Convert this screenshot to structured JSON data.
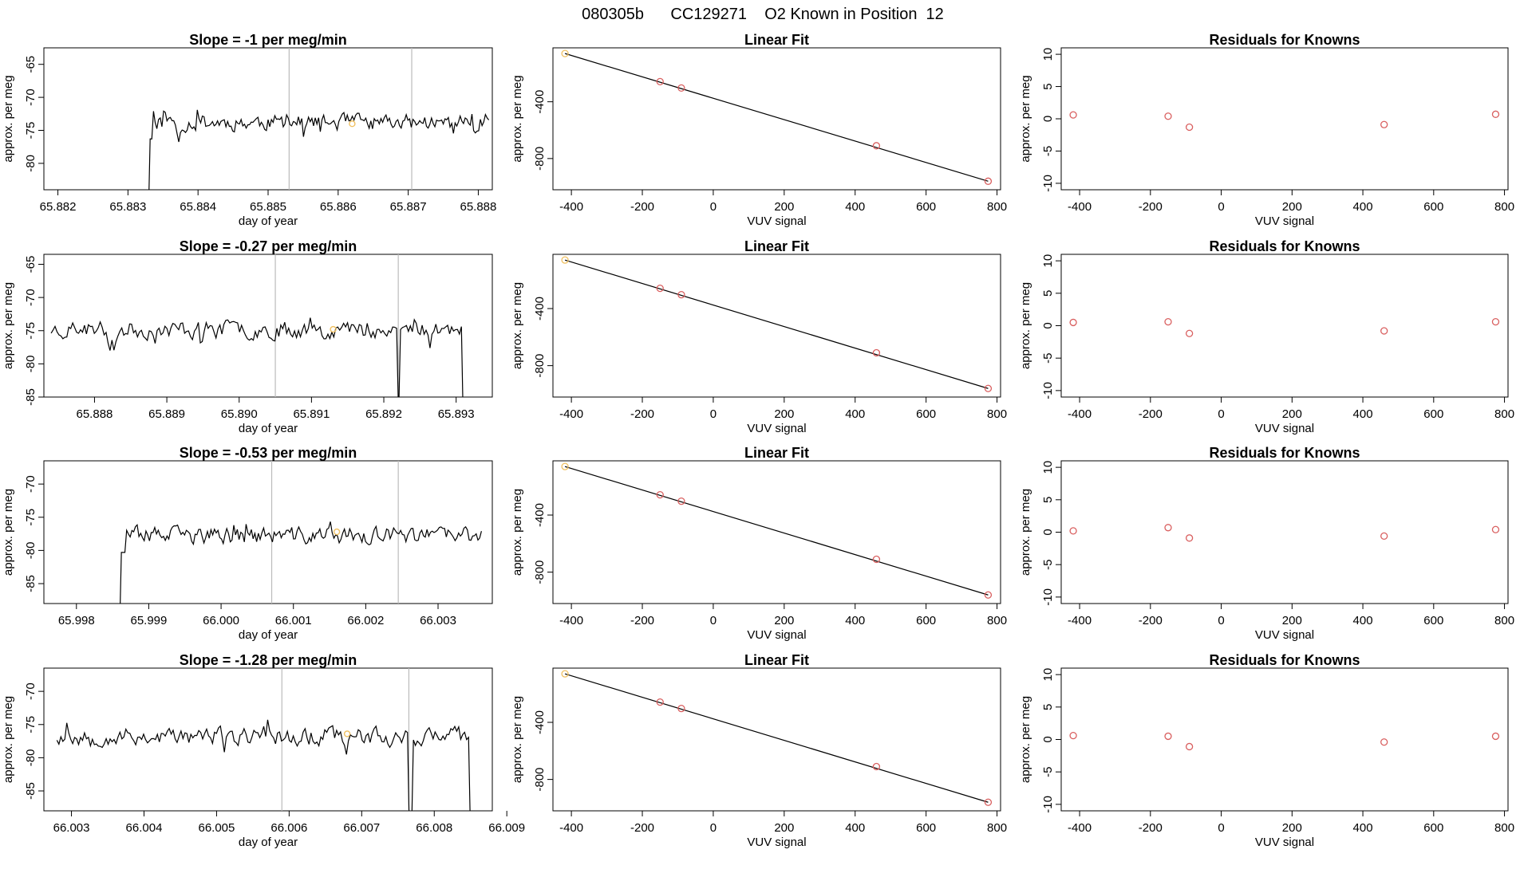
{
  "page": {
    "title": "080305b      CC129271    O2 Known in Position  12"
  },
  "colors": {
    "line": "#000000",
    "point": "#d95f5f",
    "highlight": "#f0c060",
    "vline": "#bbbbbb",
    "axis": "#000000"
  },
  "chart_data": [
    {
      "type": "line",
      "title": "Slope =  -1  per meg/min",
      "xlabel": "day of year",
      "ylabel": "approx. per meg",
      "xlim": [
        65.8818,
        65.8882
      ],
      "ylim": [
        -84,
        -62.5
      ],
      "xticks": [
        65.882,
        65.883,
        65.884,
        65.885,
        65.886,
        65.887,
        65.888
      ],
      "xtick_labels": [
        "65.882",
        "65.883",
        "65.884",
        "65.885",
        "65.886",
        "65.887",
        "65.888"
      ],
      "yticks": [
        -65,
        -70,
        -75,
        -80
      ],
      "ytick_labels": [
        "-65",
        "-70",
        "-75",
        "-80"
      ],
      "x_start": 65.8831,
      "x_end": 65.88815,
      "start_level": -88,
      "step_x": 65.8833,
      "mean": -73.8,
      "amp": 1.9,
      "tail": null,
      "dips": [],
      "vlines": [
        65.8853,
        65.88705
      ],
      "highlight": [
        65.8862,
        -74.0
      ],
      "seed": 11
    },
    {
      "type": "line",
      "title": "Slope =  -0.27  per meg/min",
      "xlabel": "day of year",
      "ylabel": "approx. per meg",
      "xlim": [
        65.8873,
        65.8935
      ],
      "ylim": [
        -85,
        -63.5
      ],
      "xticks": [
        65.888,
        65.889,
        65.89,
        65.891,
        65.892,
        65.893
      ],
      "xtick_labels": [
        "65.888",
        "65.889",
        "65.890",
        "65.891",
        "65.892",
        "65.893"
      ],
      "yticks": [
        -65,
        -70,
        -75,
        -80,
        -85
      ],
      "ytick_labels": [
        "-65",
        "-70",
        "-75",
        "-80",
        "-85"
      ],
      "x_start": 65.8874,
      "x_end": 65.8931,
      "start_level": null,
      "step_x": null,
      "mean": -74.8,
      "amp": 2.1,
      "tail": -90,
      "dips": [
        [
          65.8922,
          -88
        ]
      ],
      "vlines": [
        65.8905,
        65.8922
      ],
      "highlight": [
        65.8913,
        -74.8
      ],
      "seed": 23
    },
    {
      "type": "line",
      "title": "Slope =  -0.53  per meg/min",
      "xlabel": "day of year",
      "ylabel": "approx. per meg",
      "xlim": [
        65.99755,
        66.00375
      ],
      "ylim": [
        -88,
        -66.5
      ],
      "xticks": [
        65.998,
        65.999,
        66.0,
        66.001,
        66.002,
        66.003
      ],
      "xtick_labels": [
        "65.998",
        "65.999",
        "66.000",
        "66.001",
        "66.002",
        "66.003"
      ],
      "yticks": [
        -70,
        -75,
        -80,
        -85
      ],
      "ytick_labels": [
        "-70",
        "-75",
        "-80",
        "-85"
      ],
      "x_start": 65.9985,
      "x_end": 66.0036,
      "start_level": -92,
      "step_x": 65.99862,
      "mean": -77.8,
      "amp": 2.0,
      "tail": null,
      "dips": [],
      "vlines": [
        66.0007,
        66.00245
      ],
      "highlight": [
        66.0016,
        -77.2
      ],
      "seed": 37
    },
    {
      "type": "line",
      "title": "Slope =  -1.28  per meg/min",
      "xlabel": "day of year",
      "ylabel": "approx. per meg",
      "xlim": [
        66.00262,
        66.0088
      ],
      "ylim": [
        -88,
        -66.5
      ],
      "xticks": [
        66.003,
        66.004,
        66.005,
        66.006,
        66.007,
        66.008,
        66.009
      ],
      "xtick_labels": [
        "66.003",
        "66.004",
        "66.005",
        "66.006",
        "66.007",
        "66.008",
        "66.009"
      ],
      "yticks": [
        -70,
        -75,
        -80,
        -85
      ],
      "ytick_labels": [
        "-70",
        "-75",
        "-80",
        "-85"
      ],
      "x_start": 66.0028,
      "x_end": 66.0085,
      "start_level": null,
      "step_x": null,
      "mean": -76.8,
      "amp": 2.1,
      "tail": -92,
      "dips": [
        [
          66.00768,
          -92
        ]
      ],
      "vlines": [
        66.0059,
        66.00765
      ],
      "highlight": [
        66.0068,
        -76.4
      ],
      "seed": 53
    },
    {
      "type": "scatter",
      "title": "Linear Fit",
      "xlabel": "VUV signal",
      "ylabel": "approx. per meg",
      "xlim": [
        -452,
        810
      ],
      "ylim": [
        -1020,
        -20
      ],
      "xticks": [
        -400,
        -200,
        0,
        200,
        400,
        600,
        800
      ],
      "xtick_labels": [
        "-400",
        "-200",
        "0",
        "200",
        "400",
        "600",
        "800"
      ],
      "yticks": [
        -400,
        -800
      ],
      "ytick_labels": [
        "-400",
        "-800"
      ],
      "fit_line": [
        [
          -418,
          -60
        ],
        [
          775,
          -960
        ]
      ],
      "x": [
        -418,
        -150,
        -90,
        460,
        775
      ],
      "y": [
        -60,
        -258,
        -303,
        -710,
        -960
      ],
      "highlight_index": 0
    },
    {
      "type": "scatter",
      "title": "Linear Fit",
      "xlabel": "VUV signal",
      "ylabel": "approx. per meg",
      "xlim": [
        -452,
        810
      ],
      "ylim": [
        -1020,
        -20
      ],
      "xticks": [
        -400,
        -200,
        0,
        200,
        400,
        600,
        800
      ],
      "xtick_labels": [
        "-400",
        "-200",
        "0",
        "200",
        "400",
        "600",
        "800"
      ],
      "yticks": [
        -400,
        -800
      ],
      "ytick_labels": [
        "-400",
        "-800"
      ],
      "fit_line": [
        [
          -418,
          -60
        ],
        [
          775,
          -960
        ]
      ],
      "x": [
        -418,
        -150,
        -90,
        460,
        775
      ],
      "y": [
        -60,
        -258,
        -303,
        -710,
        -960
      ],
      "highlight_index": 0
    },
    {
      "type": "scatter",
      "title": "Linear Fit",
      "xlabel": "VUV signal",
      "ylabel": "approx. per meg",
      "xlim": [
        -452,
        810
      ],
      "ylim": [
        -1020,
        -20
      ],
      "xticks": [
        -400,
        -200,
        0,
        200,
        400,
        600,
        800
      ],
      "xtick_labels": [
        "-400",
        "-200",
        "0",
        "200",
        "400",
        "600",
        "800"
      ],
      "yticks": [
        -400,
        -800
      ],
      "ytick_labels": [
        "-400",
        "-800"
      ],
      "fit_line": [
        [
          -418,
          -60
        ],
        [
          775,
          -960
        ]
      ],
      "x": [
        -418,
        -150,
        -90,
        460,
        775
      ],
      "y": [
        -60,
        -258,
        -303,
        -710,
        -960
      ],
      "highlight_index": 0
    },
    {
      "type": "scatter",
      "title": "Linear Fit",
      "xlabel": "VUV signal",
      "ylabel": "approx. per meg",
      "xlim": [
        -452,
        810
      ],
      "ylim": [
        -1020,
        -20
      ],
      "xticks": [
        -400,
        -200,
        0,
        200,
        400,
        600,
        800
      ],
      "xtick_labels": [
        "-400",
        "-200",
        "0",
        "200",
        "400",
        "600",
        "800"
      ],
      "yticks": [
        -400,
        -800
      ],
      "ytick_labels": [
        "-400",
        "-800"
      ],
      "fit_line": [
        [
          -418,
          -60
        ],
        [
          775,
          -960
        ]
      ],
      "x": [
        -418,
        -150,
        -90,
        460,
        775
      ],
      "y": [
        -60,
        -258,
        -303,
        -710,
        -960
      ],
      "highlight_index": 0
    },
    {
      "type": "scatter",
      "title": "Residuals for Knowns",
      "xlabel": "VUV signal",
      "ylabel": "approx. per meg",
      "xlim": [
        -452,
        810
      ],
      "ylim": [
        -11,
        11
      ],
      "xticks": [
        -400,
        -200,
        0,
        200,
        400,
        600,
        800
      ],
      "xtick_labels": [
        "-400",
        "-200",
        "0",
        "200",
        "400",
        "600",
        "800"
      ],
      "yticks": [
        10,
        5,
        0,
        -5,
        -10
      ],
      "ytick_labels": [
        "10",
        "5",
        "0",
        "-5",
        "-10"
      ],
      "x": [
        -418,
        -150,
        -90,
        460,
        775
      ],
      "y": [
        0.6,
        0.4,
        -1.3,
        -0.9,
        0.7
      ]
    },
    {
      "type": "scatter",
      "title": "Residuals for Knowns",
      "xlabel": "VUV signal",
      "ylabel": "approx. per meg",
      "xlim": [
        -452,
        810
      ],
      "ylim": [
        -11,
        11
      ],
      "xticks": [
        -400,
        -200,
        0,
        200,
        400,
        600,
        800
      ],
      "xtick_labels": [
        "-400",
        "-200",
        "0",
        "200",
        "400",
        "600",
        "800"
      ],
      "yticks": [
        10,
        5,
        0,
        -5,
        -10
      ],
      "ytick_labels": [
        "10",
        "5",
        "0",
        "-5",
        "-10"
      ],
      "x": [
        -418,
        -150,
        -90,
        460,
        775
      ],
      "y": [
        0.5,
        0.6,
        -1.2,
        -0.8,
        0.6
      ]
    },
    {
      "type": "scatter",
      "title": "Residuals for Knowns",
      "xlabel": "VUV signal",
      "ylabel": "approx. per meg",
      "xlim": [
        -452,
        810
      ],
      "ylim": [
        -11,
        11
      ],
      "xticks": [
        -400,
        -200,
        0,
        200,
        400,
        600,
        800
      ],
      "xtick_labels": [
        "-400",
        "-200",
        "0",
        "200",
        "400",
        "600",
        "800"
      ],
      "yticks": [
        10,
        5,
        0,
        -5,
        -10
      ],
      "ytick_labels": [
        "10",
        "5",
        "0",
        "-5",
        "-10"
      ],
      "x": [
        -418,
        -150,
        -90,
        460,
        775
      ],
      "y": [
        0.2,
        0.7,
        -0.9,
        -0.6,
        0.4
      ]
    },
    {
      "type": "scatter",
      "title": "Residuals for Knowns",
      "xlabel": "VUV signal",
      "ylabel": "approx. per meg",
      "xlim": [
        -452,
        810
      ],
      "ylim": [
        -11,
        11
      ],
      "xticks": [
        -400,
        -200,
        0,
        200,
        400,
        600,
        800
      ],
      "xtick_labels": [
        "-400",
        "-200",
        "0",
        "200",
        "400",
        "600",
        "800"
      ],
      "yticks": [
        10,
        5,
        0,
        -5,
        -10
      ],
      "ytick_labels": [
        "10",
        "5",
        "0",
        "-5",
        "-10"
      ],
      "x": [
        -418,
        -150,
        -90,
        460,
        775
      ],
      "y": [
        0.6,
        0.5,
        -1.1,
        -0.4,
        0.5
      ]
    }
  ]
}
